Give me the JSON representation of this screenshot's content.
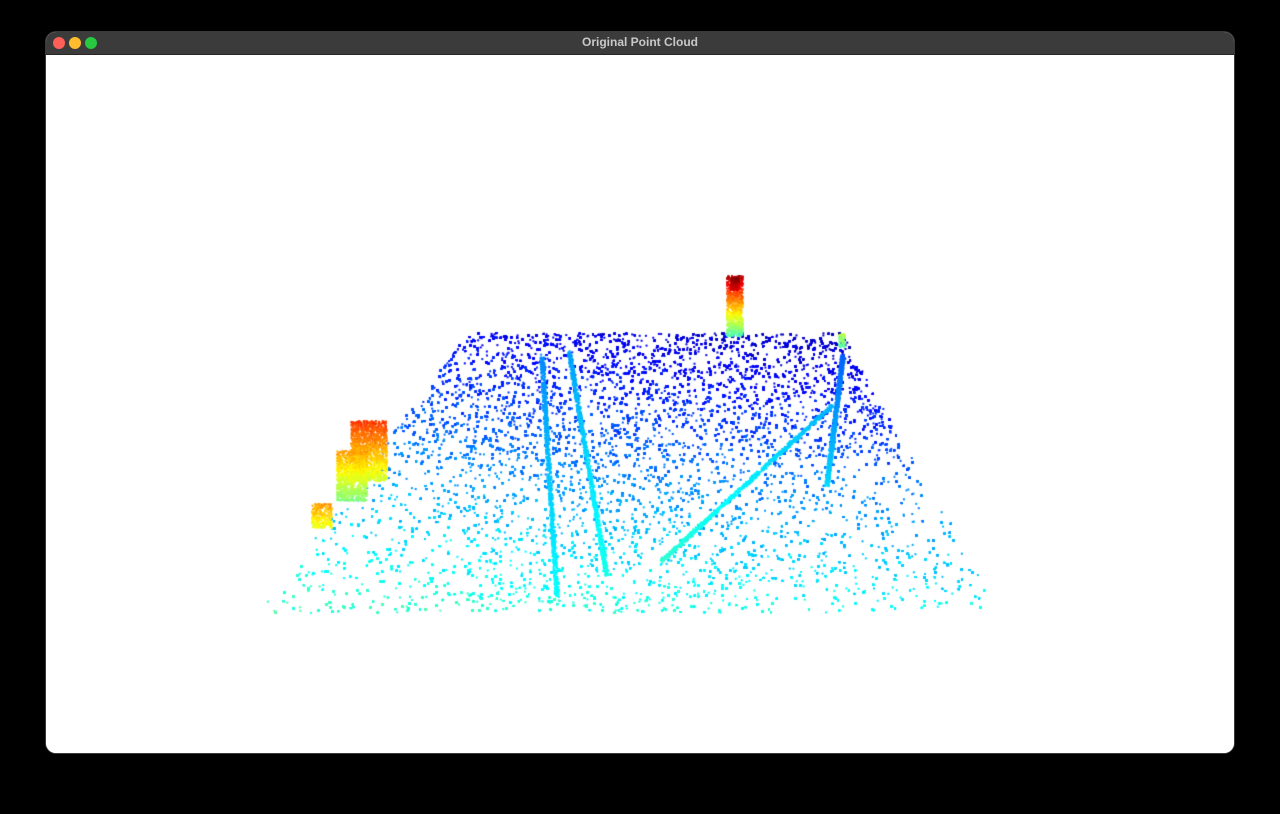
{
  "window": {
    "title": "Original Point Cloud",
    "controls": {
      "close_color": "#fe5f57",
      "minimize_color": "#febc2e",
      "maximize_color": "#28c840"
    }
  },
  "viewport": {
    "background": "#ffffff",
    "colormap": "jet",
    "colormap_stops": [
      "#00008b",
      "#0040ff",
      "#00a0ff",
      "#40e0ff",
      "#60ffb0",
      "#c0ff40",
      "#ffd000",
      "#ff6000",
      "#e00000"
    ]
  }
}
